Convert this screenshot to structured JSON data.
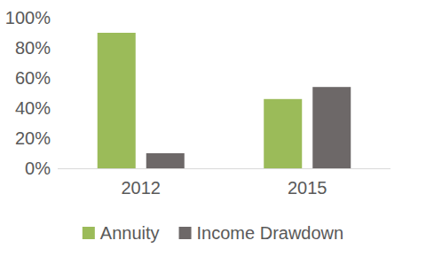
{
  "chart_data": {
    "type": "bar",
    "categories": [
      "2012",
      "2015"
    ],
    "series": [
      {
        "name": "Annuity",
        "color": "#9bbb59",
        "values": [
          90,
          46
        ]
      },
      {
        "name": "Income Drawdown",
        "color": "#6d6868",
        "values": [
          10,
          54
        ]
      }
    ],
    "ylim": [
      0,
      100
    ],
    "yticks": [
      {
        "value": 0,
        "label": "0%"
      },
      {
        "value": 20,
        "label": "20%"
      },
      {
        "value": 40,
        "label": "40%"
      },
      {
        "value": 60,
        "label": "60%"
      },
      {
        "value": 80,
        "label": "80%"
      },
      {
        "value": 100,
        "label": "100%"
      }
    ],
    "grid": false,
    "legend": "bottom"
  }
}
